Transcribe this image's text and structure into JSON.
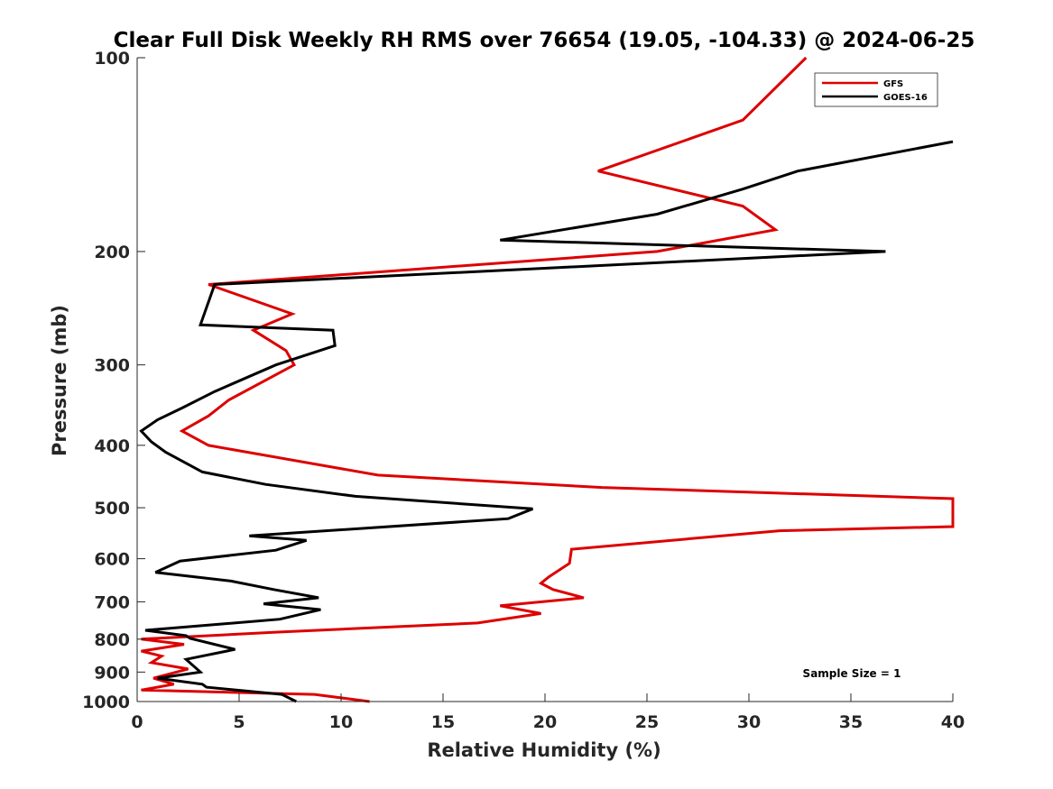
{
  "chart_data": {
    "type": "line",
    "title": "Clear Full Disk Weekly RH RMS over 76654 (19.05, -104.33) @ 2024-06-25",
    "xlabel": "Relative Humidity (%)",
    "ylabel": "Pressure (mb)",
    "xlim": [
      0,
      40
    ],
    "ylim": [
      100,
      1000
    ],
    "yscale": "log",
    "yreversed": true,
    "xticks": [
      0,
      5,
      10,
      15,
      20,
      25,
      30,
      35,
      40
    ],
    "xtick_labels": [
      "0",
      "5",
      "10",
      "15",
      "20",
      "25",
      "30",
      "35",
      "40"
    ],
    "yticks": [
      100,
      200,
      300,
      400,
      500,
      600,
      700,
      800,
      900,
      1000
    ],
    "ytick_labels": [
      "100",
      "200",
      "300",
      "400",
      "500",
      "600",
      "700",
      "800",
      "900",
      "1000"
    ],
    "grid": false,
    "legend_position": "top-right",
    "annotation": "Sample Size = 1",
    "series": [
      {
        "name": "GFS",
        "color": "#dd0000",
        "points": [
          [
            32.8,
            100
          ],
          [
            29.7,
            125
          ],
          [
            22.6,
            150
          ],
          [
            29.7,
            170
          ],
          [
            31.3,
            185
          ],
          [
            25.5,
            200
          ],
          [
            3.5,
            225
          ],
          [
            7.6,
            250
          ],
          [
            5.7,
            265
          ],
          [
            7.3,
            285
          ],
          [
            7.7,
            300
          ],
          [
            4.5,
            340
          ],
          [
            3.5,
            360
          ],
          [
            2.2,
            380
          ],
          [
            3.5,
            400
          ],
          [
            11.8,
            445
          ],
          [
            22.8,
            465
          ],
          [
            40,
            484
          ],
          [
            40,
            535
          ],
          [
            31.5,
            543
          ],
          [
            21.3,
            580
          ],
          [
            21.2,
            610
          ],
          [
            20.2,
            640
          ],
          [
            19.8,
            655
          ],
          [
            20.4,
            670
          ],
          [
            21.9,
            690
          ],
          [
            17.8,
            710
          ],
          [
            19.8,
            730
          ],
          [
            16.7,
            755
          ],
          [
            6.9,
            780
          ],
          [
            0.2,
            800
          ],
          [
            2.3,
            815
          ],
          [
            0.2,
            835
          ],
          [
            1.2,
            850
          ],
          [
            0.7,
            870
          ],
          [
            2.5,
            890
          ],
          [
            0.8,
            920
          ],
          [
            1.8,
            940
          ],
          [
            0.2,
            960
          ],
          [
            8.7,
            975
          ],
          [
            11.4,
            1000
          ]
        ]
      },
      {
        "name": "GOES-16",
        "color": "#000000",
        "points": [
          [
            40,
            135
          ],
          [
            32.4,
            150
          ],
          [
            29.7,
            160
          ],
          [
            25.5,
            175
          ],
          [
            17.8,
            192
          ],
          [
            36.7,
            200
          ],
          [
            3.8,
            225
          ],
          [
            3.1,
            260
          ],
          [
            9.6,
            265
          ],
          [
            9.7,
            280
          ],
          [
            6.8,
            300
          ],
          [
            3.8,
            330
          ],
          [
            2.2,
            350
          ],
          [
            1.0,
            365
          ],
          [
            0.2,
            380
          ],
          [
            0.7,
            395
          ],
          [
            1.4,
            410
          ],
          [
            3.2,
            440
          ],
          [
            6.3,
            460
          ],
          [
            10.7,
            480
          ],
          [
            19.4,
            502
          ],
          [
            18.2,
            520
          ],
          [
            5.5,
            553
          ],
          [
            8.3,
            562
          ],
          [
            6.8,
            582
          ],
          [
            2.1,
            605
          ],
          [
            0.9,
            630
          ],
          [
            4.6,
            650
          ],
          [
            6.7,
            670
          ],
          [
            8.9,
            690
          ],
          [
            6.2,
            705
          ],
          [
            9.0,
            720
          ],
          [
            7.0,
            745
          ],
          [
            0.4,
            775
          ],
          [
            2.4,
            790
          ],
          [
            2.6,
            798
          ],
          [
            4.8,
            830
          ],
          [
            2.4,
            860
          ],
          [
            3.1,
            900
          ],
          [
            1.0,
            920
          ],
          [
            3.2,
            940
          ],
          [
            3.4,
            950
          ],
          [
            7.1,
            975
          ],
          [
            7.8,
            1000
          ]
        ]
      }
    ]
  }
}
